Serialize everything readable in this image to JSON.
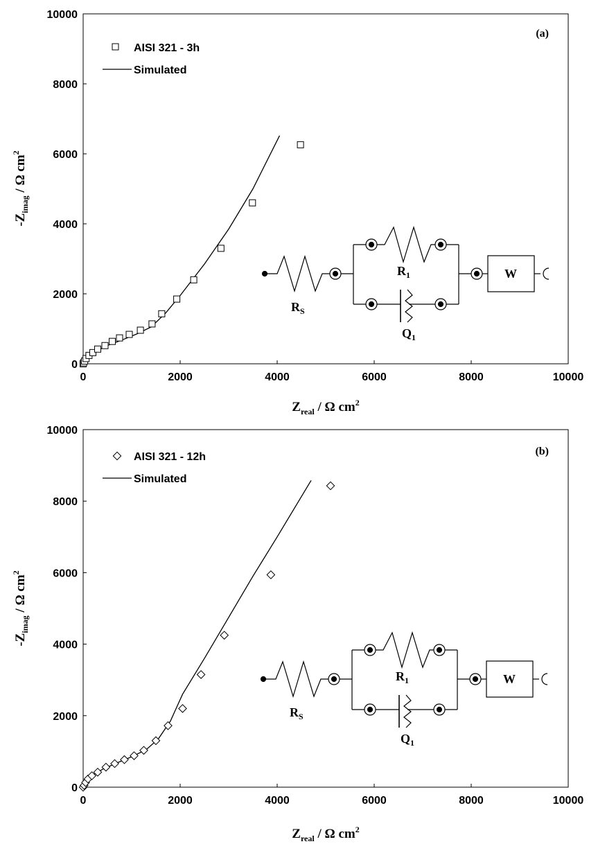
{
  "chart_data": [
    {
      "type": "scatter",
      "panel_label": "(a)",
      "xlabel": {
        "main": "Z",
        "sub": "real",
        "rest": " / Ω cm",
        "sup": "2"
      },
      "ylabel": {
        "main": "-Z",
        "sub": "imag",
        "rest": " / Ω cm",
        "sup": "2"
      },
      "xlim": [
        0,
        10000
      ],
      "ylim": [
        0,
        10000
      ],
      "xticks": [
        0,
        2000,
        4000,
        6000,
        8000,
        10000
      ],
      "yticks": [
        0,
        2000,
        4000,
        6000,
        8000,
        10000
      ],
      "grid": false,
      "legend_position": "top-left",
      "series": [
        {
          "name": "AISI 321 - 3h",
          "kind": "markers",
          "marker": "square",
          "points": [
            [
              0,
              0
            ],
            [
              10,
              30
            ],
            [
              30,
              80
            ],
            [
              60,
              150
            ],
            [
              120,
              240
            ],
            [
              200,
              320
            ],
            [
              300,
              420
            ],
            [
              450,
              520
            ],
            [
              600,
              640
            ],
            [
              750,
              740
            ],
            [
              950,
              840
            ],
            [
              1180,
              960
            ],
            [
              1420,
              1140
            ],
            [
              1620,
              1430
            ],
            [
              1930,
              1850
            ],
            [
              2280,
              2400
            ],
            [
              2840,
              3300
            ],
            [
              3490,
              4600
            ],
            [
              4480,
              6260
            ]
          ]
        },
        {
          "name": "Simulated",
          "kind": "line",
          "points": [
            [
              0,
              0
            ],
            [
              30,
              100
            ],
            [
              100,
              220
            ],
            [
              250,
              350
            ],
            [
              500,
              520
            ],
            [
              800,
              680
            ],
            [
              1100,
              850
            ],
            [
              1400,
              1050
            ],
            [
              1700,
              1450
            ],
            [
              2000,
              1950
            ],
            [
              2500,
              2850
            ],
            [
              3000,
              3850
            ],
            [
              3500,
              5000
            ],
            [
              4050,
              6520
            ]
          ]
        }
      ],
      "circuit": {
        "rs": {
          "main": "R",
          "sub": "S"
        },
        "r1": {
          "main": "R",
          "sub": "1"
        },
        "q1": {
          "main": "Q",
          "sub": "1"
        },
        "w": "W"
      }
    },
    {
      "type": "scatter",
      "panel_label": "(b)",
      "xlabel": {
        "main": "Z",
        "sub": "real",
        "rest": " / Ω cm",
        "sup": "2"
      },
      "ylabel": {
        "main": "-Z",
        "sub": "imag",
        "rest": " / Ω cm",
        "sup": "2"
      },
      "xlim": [
        0,
        10000
      ],
      "ylim": [
        0,
        10000
      ],
      "xticks": [
        0,
        2000,
        4000,
        6000,
        8000,
        10000
      ],
      "yticks": [
        0,
        2000,
        4000,
        6000,
        8000,
        10000
      ],
      "grid": false,
      "legend_position": "top-left",
      "series": [
        {
          "name": "AISI 321 - 12h",
          "kind": "markers",
          "marker": "diamond",
          "points": [
            [
              0,
              0
            ],
            [
              20,
              50
            ],
            [
              50,
              130
            ],
            [
              100,
              230
            ],
            [
              180,
              320
            ],
            [
              300,
              420
            ],
            [
              470,
              560
            ],
            [
              650,
              660
            ],
            [
              850,
              770
            ],
            [
              1050,
              880
            ],
            [
              1250,
              1030
            ],
            [
              1500,
              1300
            ],
            [
              1750,
              1720
            ],
            [
              2050,
              2200
            ],
            [
              2430,
              3150
            ],
            [
              2910,
              4250
            ],
            [
              3870,
              5940
            ],
            [
              5100,
              8430
            ]
          ]
        },
        {
          "name": "Simulated",
          "kind": "line",
          "points": [
            [
              0,
              0
            ],
            [
              50,
              150
            ],
            [
              150,
              300
            ],
            [
              400,
              500
            ],
            [
              700,
              680
            ],
            [
              1000,
              850
            ],
            [
              1300,
              1050
            ],
            [
              1550,
              1350
            ],
            [
              1800,
              1850
            ],
            [
              2050,
              2600
            ],
            [
              2500,
              3600
            ],
            [
              3000,
              4750
            ],
            [
              3500,
              5900
            ],
            [
              4000,
              7000
            ],
            [
              4700,
              8580
            ]
          ]
        }
      ],
      "circuit": {
        "rs": {
          "main": "R",
          "sub": "S"
        },
        "r1": {
          "main": "R",
          "sub": "1"
        },
        "q1": {
          "main": "Q",
          "sub": "1"
        },
        "w": "W"
      }
    }
  ]
}
